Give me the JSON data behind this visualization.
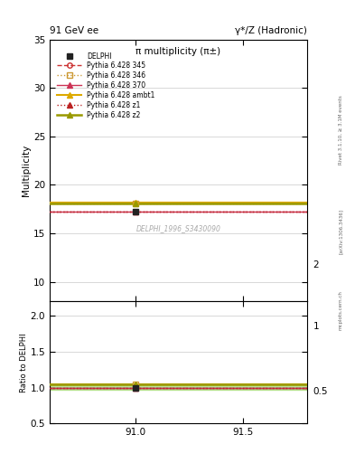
{
  "title_left": "91 GeV ee",
  "title_right": "γ*/Z (Hadronic)",
  "plot_title": "π multiplicity (π±)",
  "ylabel_main": "Multiplicity",
  "ylabel_ratio": "Ratio to DELPHI",
  "watermark": "DELPHI_1996_S3430090",
  "rivet_label": "Rivet 3.1.10, ≥ 3.1M events",
  "arxiv_label": "[arXiv:1306.3436]",
  "mcplots_label": "mcplots.cern.ch",
  "xlim": [
    90.6,
    91.8
  ],
  "xticks": [
    91.0,
    91.5
  ],
  "ylim_main": [
    8.0,
    35.0
  ],
  "yticks_main": [
    10,
    15,
    20,
    25,
    30,
    35
  ],
  "ylim_ratio": [
    0.5,
    2.2
  ],
  "yticks_ratio": [
    0.5,
    1.0,
    1.5,
    2.0
  ],
  "data_x": 91.0,
  "data_y": 17.25,
  "data_yerr": 0.18,
  "data_color": "#222222",
  "data_label": "DELPHI",
  "lines": [
    {
      "label": "Pythia 6.428 345",
      "y": 17.28,
      "ratio": 1.002,
      "color": "#cc3333",
      "linestyle": "--",
      "marker": "o",
      "markersize": 4,
      "lw": 1.0
    },
    {
      "label": "Pythia 6.428 346",
      "y": 18.05,
      "ratio": 1.046,
      "color": "#cc9933",
      "linestyle": ":",
      "marker": "s",
      "markersize": 4,
      "lw": 1.0
    },
    {
      "label": "Pythia 6.428 370",
      "y": 17.28,
      "ratio": 1.002,
      "color": "#cc3355",
      "linestyle": "-",
      "marker": "^",
      "markersize": 5,
      "lw": 1.0
    },
    {
      "label": "Pythia 6.428 ambt1",
      "y": 18.15,
      "ratio": 1.052,
      "color": "#ddaa00",
      "linestyle": "-",
      "marker": "^",
      "markersize": 5,
      "lw": 1.5
    },
    {
      "label": "Pythia 6.428 z1",
      "y": 17.28,
      "ratio": 1.002,
      "color": "#bb2222",
      "linestyle": ":",
      "marker": "^",
      "markersize": 4,
      "lw": 1.0
    },
    {
      "label": "Pythia 6.428 z2",
      "y": 18.05,
      "ratio": 1.046,
      "color": "#999900",
      "linestyle": "-",
      "marker": "^",
      "markersize": 4,
      "lw": 1.8
    }
  ],
  "ratio_band_y_low": 0.97,
  "ratio_band_y_high": 1.03,
  "ratio_band_color": "#88cc44",
  "ratio_band_alpha": 0.5,
  "bg_color": "#ffffff",
  "grid_color": "#bbbbbb"
}
